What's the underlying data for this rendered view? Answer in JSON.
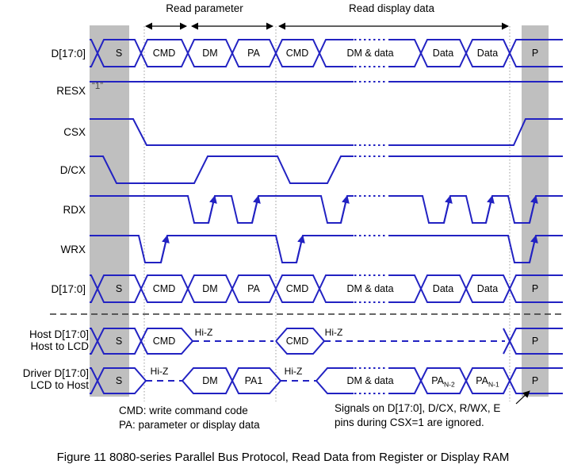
{
  "phases": {
    "read_parameter": "Read parameter",
    "read_display_data": "Read display data"
  },
  "signals": {
    "bus1": "D[17:0]",
    "resx": "RESX",
    "csx": "CSX",
    "dcx": "D/CX",
    "rdx": "RDX",
    "wrx": "WRX",
    "bus2": "D[17:0]",
    "host_line1": "Host D[17:0]",
    "host_line2": "Host to LCD",
    "driver_line1": "Driver D[17:0]",
    "driver_line2": "LCD to Host"
  },
  "resx_level": "“1”",
  "hiz_label": "Hi-Z",
  "bus_cells": [
    "S",
    "CMD",
    "DM",
    "PA",
    "CMD",
    "DM & data",
    "Data",
    "Data",
    "P"
  ],
  "host_cells": [
    "S",
    "CMD",
    "CMD",
    "P"
  ],
  "driver_cells": [
    {
      "t": "S"
    },
    {
      "t": "DM"
    },
    {
      "t": "PA1"
    },
    {
      "t": "DM & data"
    },
    {
      "t": "PA",
      "sub": "N-2"
    },
    {
      "t": "PA",
      "sub": "N-1"
    },
    {
      "t": "P"
    }
  ],
  "notes_left": [
    "CMD: write command code",
    "PA: parameter or display data"
  ],
  "notes_right": [
    "Signals on D[17:0], D/CX, R/WX, E",
    "pins during CSX=1 are ignored."
  ],
  "caption": "Figure 11 8080-series Parallel Bus Protocol, Read Data from Register or Display RAM",
  "colors": {
    "waveform": "#2222c2",
    "band": "#bfbfbf",
    "guide": "#999999",
    "ink": "#000000"
  }
}
